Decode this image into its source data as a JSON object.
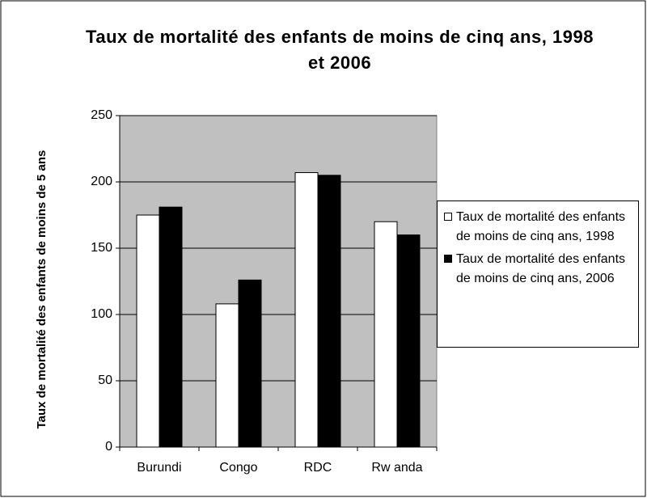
{
  "chart_data": {
    "type": "bar",
    "title": "Taux de mortalité des enfants de moins de cinq ans, 1998 et 2006",
    "y_label": "Taux de mortalité des enfants de moins de 5 ans",
    "categories": [
      "Burundi",
      "Congo",
      "RDC",
      "Rw anda"
    ],
    "series": [
      {
        "name": "Taux de mortalité des enfants de moins de cinq ans, 1998",
        "color": "#ffffff",
        "values": [
          175,
          108,
          207,
          170
        ]
      },
      {
        "name": "Taux de mortalité des enfants de moins de cinq ans, 2006",
        "color": "#000000",
        "values": [
          181,
          126,
          205,
          160
        ]
      }
    ],
    "ylim": [
      0,
      250
    ],
    "yticks": [
      0,
      50,
      100,
      150,
      200,
      250
    ],
    "grid": true,
    "plot_background": "#c0c0c0",
    "legend": "right"
  }
}
